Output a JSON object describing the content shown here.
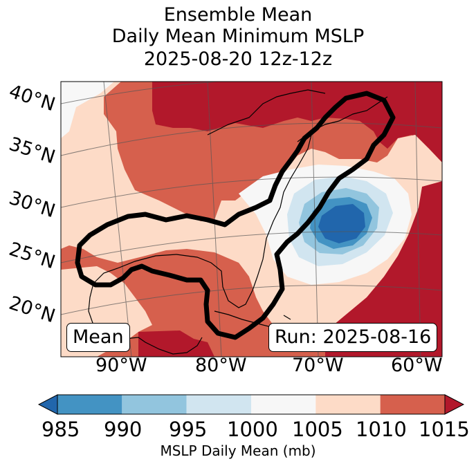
{
  "title": {
    "line1": "Ensemble Mean",
    "line2": "Daily Mean Minimum MSLP",
    "line3": "2025-08-20 12z-12z"
  },
  "latitude_labels": [
    "40°N",
    "35°N",
    "30°N",
    "25°N",
    "20°N"
  ],
  "longitude_labels": [
    "90°W",
    "80°W",
    "70°W",
    "60°W"
  ],
  "panel_label": "Mean",
  "run_label": "Run: 2025-08-16",
  "colorbar": {
    "title": "MSLP Daily Mean (mb)",
    "ticks": [
      "985",
      "990",
      "995",
      "1000",
      "1005",
      "1010",
      "1015"
    ],
    "colors": [
      "#2166ac",
      "#4393c3",
      "#92c5de",
      "#d1e5f0",
      "#f7f7f7",
      "#fddbc7",
      "#d6604d",
      "#b2182b"
    ]
  },
  "map": {
    "region": "Eastern United States, Gulf of Mexico, Western Atlantic",
    "low_center": "off the U.S. East Coast near 30°N 68°W",
    "highlighted_contour": "thick black outline around Gulf of Mexico and U.S. East Coast"
  }
}
